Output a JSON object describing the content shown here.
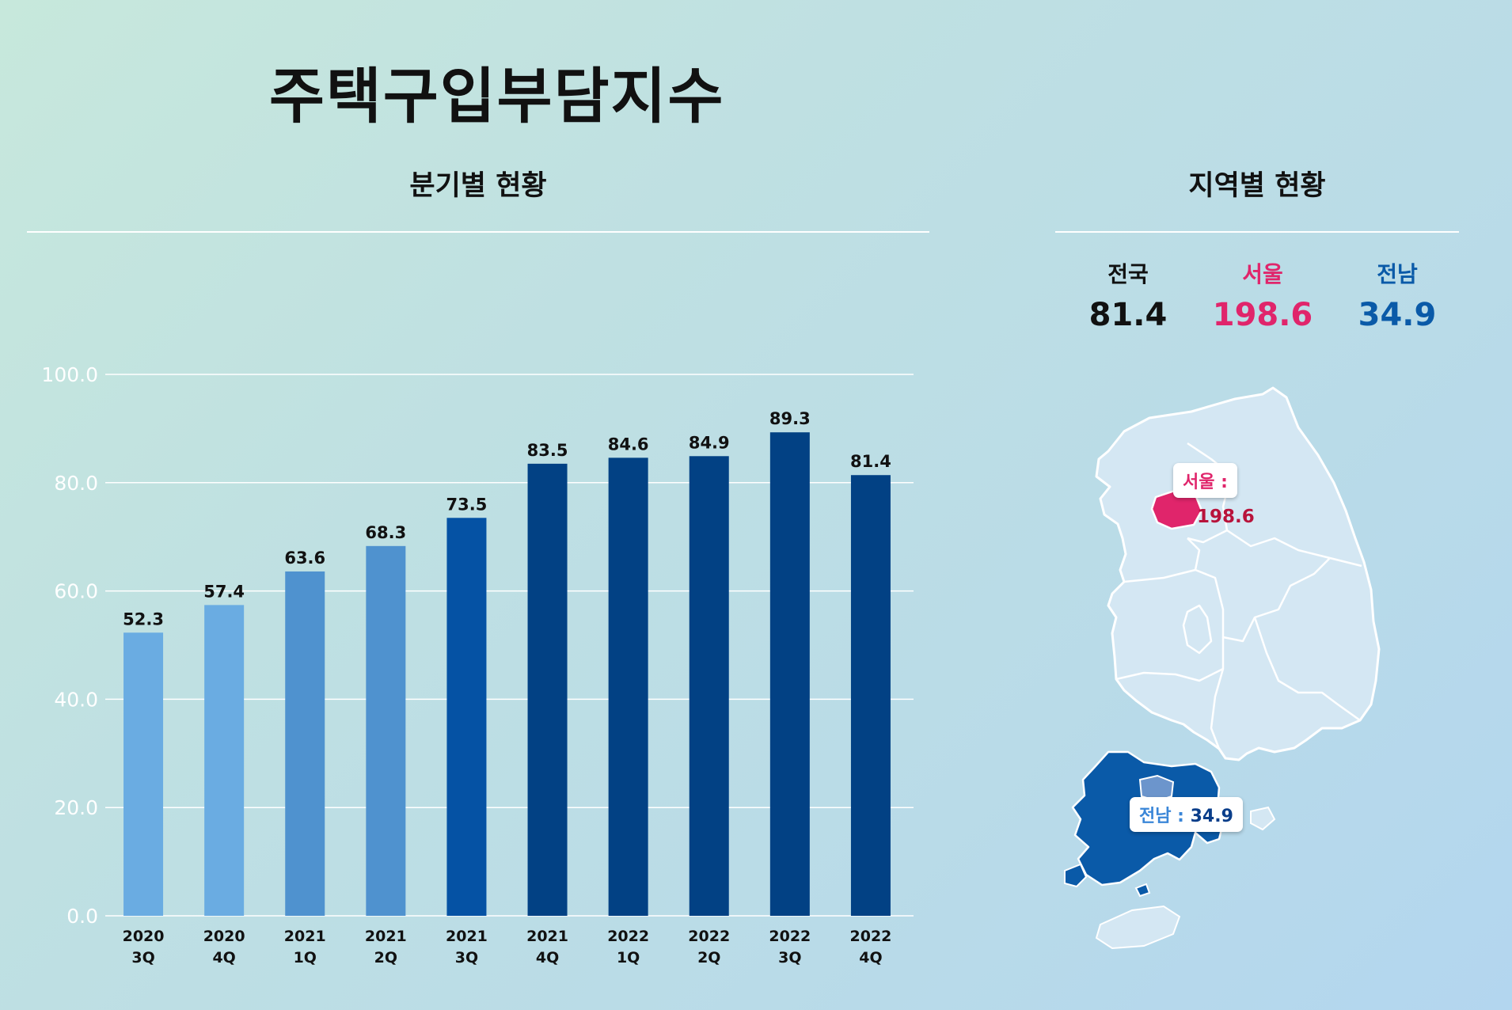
{
  "title": "주택구입부담지수",
  "quarterly": {
    "heading": "분기별 현황"
  },
  "regional": {
    "heading": "지역별 현황",
    "stats": [
      {
        "label": "전국",
        "value": "81.4",
        "color": "#111111"
      },
      {
        "label": "서울",
        "value": "198.6",
        "color": "#e0256b"
      },
      {
        "label": "전남",
        "value": "34.9",
        "color": "#0a5aa8"
      }
    ],
    "callouts": {
      "seoul": {
        "label": "서울 :",
        "value": "198.6"
      },
      "jeonnam": {
        "label": "전남 : ",
        "value": "34.9"
      }
    }
  },
  "chart_data": {
    "type": "bar",
    "categories": [
      "2020 3Q",
      "2020 4Q",
      "2021 1Q",
      "2021 2Q",
      "2021 3Q",
      "2021 4Q",
      "2022 1Q",
      "2022 2Q",
      "2022 3Q",
      "2022 4Q"
    ],
    "values": [
      52.3,
      57.4,
      63.6,
      68.3,
      73.5,
      83.5,
      84.6,
      84.9,
      89.3,
      81.4
    ],
    "colors": [
      "#6aace2",
      "#6aace2",
      "#4f92cf",
      "#4f92cf",
      "#0552a4",
      "#024184",
      "#024184",
      "#024184",
      "#024184",
      "#024184"
    ],
    "ylim": [
      0,
      100
    ],
    "yticks": [
      "0.0",
      "20.0",
      "40.0",
      "60.0",
      "80.0",
      "100.0"
    ],
    "grid": true,
    "xlabel": "",
    "ylabel": ""
  },
  "colors": {
    "seoul": "#e0256b",
    "jeonnam": "#0a5aa8",
    "map_land": "#d4e7f3"
  }
}
